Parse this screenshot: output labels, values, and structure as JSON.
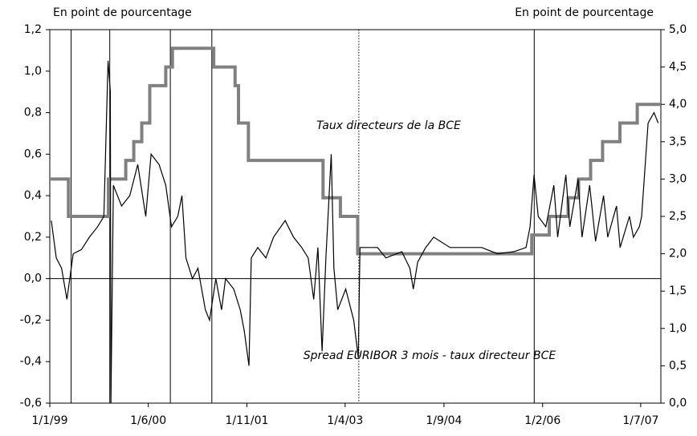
{
  "chart_data": {
    "type": "line",
    "ylabel": "En point de pourcentage",
    "y2label": "En point de pourcentage",
    "xlim": [
      "1999-01-01",
      "2007-10-15"
    ],
    "xticks": [
      {
        "value": "1999-01-01",
        "label": "1/1/99"
      },
      {
        "value": "2000-06-01",
        "label": "1/6/00"
      },
      {
        "value": "2001-11-01",
        "label": "1/11/01"
      },
      {
        "value": "2003-04-01",
        "label": "1/4/03"
      },
      {
        "value": "2004-09-01",
        "label": "1/9/04"
      },
      {
        "value": "2006-02-01",
        "label": "1/2/06"
      },
      {
        "value": "2007-07-01",
        "label": "1/7/07"
      }
    ],
    "ylim": [
      -0.6,
      1.2
    ],
    "yticks": [
      {
        "value": 1.2,
        "label": "1,2"
      },
      {
        "value": 1.0,
        "label": "1,0"
      },
      {
        "value": 0.8,
        "label": "0,8"
      },
      {
        "value": 0.6,
        "label": "0,6"
      },
      {
        "value": 0.4,
        "label": "0,4"
      },
      {
        "value": 0.2,
        "label": "0,2"
      },
      {
        "value": 0,
        "label": "0,0"
      },
      {
        "value": -0.2,
        "label": "-0,2"
      },
      {
        "value": -0.4,
        "label": "-0,4"
      },
      {
        "value": -0.6,
        "label": "-0,6"
      }
    ],
    "y2lim": [
      0,
      5.0
    ],
    "y2ticks": [
      {
        "value": 5.0,
        "label": "5,0"
      },
      {
        "value": 4.5,
        "label": "4,5"
      },
      {
        "value": 4.0,
        "label": "4,0"
      },
      {
        "value": 3.5,
        "label": "3,5"
      },
      {
        "value": 3.0,
        "label": "3,0"
      },
      {
        "value": 2.5,
        "label": "2,5"
      },
      {
        "value": 2.0,
        "label": "2,0"
      },
      {
        "value": 1.5,
        "label": "1,5"
      },
      {
        "value": 1.0,
        "label": "1,0"
      },
      {
        "value": 0.5,
        "label": "0,5"
      },
      {
        "value": 0,
        "label": "0,0"
      }
    ],
    "vlines": [
      {
        "x": "1999-04-23"
      },
      {
        "x": "1999-11-12"
      },
      {
        "x": "2000-09-25"
      },
      {
        "x": "2001-05-01"
      },
      {
        "x": "2003-06-12",
        "style": "dotted"
      },
      {
        "x": "2005-12-19"
      }
    ],
    "series": [
      {
        "name": "Taux directeurs de la BCE",
        "color": "#808080",
        "axis": "y2",
        "step": true,
        "x": [
          "1999-01-01",
          "1999-04-09",
          "1999-11-05",
          "2000-02-04",
          "2000-03-17",
          "2000-04-28",
          "2000-06-09",
          "2000-09-01",
          "2000-10-06",
          "2001-05-11",
          "2001-08-31",
          "2001-09-18",
          "2001-11-09",
          "2002-12-06",
          "2003-03-07",
          "2003-06-06",
          "2005-12-06",
          "2006-03-08",
          "2006-06-15",
          "2006-08-09",
          "2006-10-11",
          "2006-12-13",
          "2007-03-14",
          "2007-06-13"
        ],
        "values": [
          3.0,
          2.5,
          3.0,
          3.25,
          3.5,
          3.75,
          4.25,
          4.5,
          4.75,
          4.5,
          4.25,
          3.75,
          3.25,
          2.75,
          2.5,
          2.0,
          2.25,
          2.5,
          2.75,
          3.0,
          3.25,
          3.5,
          3.75,
          4.0
        ]
      },
      {
        "name": "Spread EURIBOR 3 mois - taux directeur BCE",
        "color": "#000000",
        "axis": "y",
        "x": [
          "1999-01-09",
          "1999-02-04",
          "1999-03-04",
          "1999-04-01",
          "1999-05-04",
          "1999-06-16",
          "1999-07-28",
          "1999-09-09",
          "1999-10-12",
          "1999-11-03",
          "1999-11-15",
          "1999-11-18",
          "1999-12-01",
          "2000-01-13",
          "2000-02-25",
          "2000-04-07",
          "2000-05-19",
          "2000-06-16",
          "2000-07-28",
          "2000-09-01",
          "2000-10-01",
          "2000-11-03",
          "2000-11-25",
          "2000-12-16",
          "2001-01-19",
          "2001-02-17",
          "2001-03-28",
          "2001-04-19",
          "2001-05-22",
          "2001-06-21",
          "2001-07-12",
          "2001-08-24",
          "2001-09-27",
          "2001-10-18",
          "2001-11-12",
          "2001-11-24",
          "2001-12-28",
          "2002-02-09",
          "2002-03-21",
          "2002-05-21",
          "2002-07-04",
          "2002-08-16",
          "2002-09-19",
          "2002-10-18",
          "2002-11-09",
          "2002-12-01",
          "2002-12-21",
          "2003-01-18",
          "2003-02-01",
          "2003-02-21",
          "2003-04-04",
          "2003-05-16",
          "2003-06-09",
          "2003-06-18",
          "2003-09-18",
          "2003-11-01",
          "2004-01-24",
          "2004-03-06",
          "2004-03-24",
          "2004-04-16",
          "2004-05-28",
          "2004-07-09",
          "2004-10-03",
          "2004-12-25",
          "2005-03-18",
          "2005-06-09",
          "2005-09-03",
          "2005-11-06",
          "2005-11-27",
          "2005-12-18",
          "2006-01-09",
          "2006-02-18",
          "2006-04-01",
          "2006-04-21",
          "2006-06-03",
          "2006-06-24",
          "2006-08-06",
          "2006-08-27",
          "2006-10-06",
          "2006-11-06",
          "2006-12-18",
          "2007-01-09",
          "2007-02-24",
          "2007-03-15",
          "2007-05-03",
          "2007-05-24",
          "2007-06-24",
          "2007-07-06",
          "2007-08-09",
          "2007-09-09",
          "2007-10-01"
        ],
        "values": [
          0.28,
          0.1,
          0.05,
          -0.1,
          0.12,
          0.14,
          0.2,
          0.25,
          0.3,
          1.05,
          0.9,
          -0.6,
          0.45,
          0.35,
          0.4,
          0.55,
          0.3,
          0.6,
          0.55,
          0.45,
          0.25,
          0.3,
          0.4,
          0.1,
          0.0,
          0.05,
          -0.15,
          -0.2,
          0.0,
          -0.15,
          0.0,
          -0.05,
          -0.15,
          -0.25,
          -0.42,
          0.1,
          0.15,
          0.1,
          0.2,
          0.28,
          0.2,
          0.15,
          0.1,
          -0.1,
          0.15,
          -0.35,
          0.1,
          0.6,
          0.05,
          -0.15,
          -0.05,
          -0.2,
          -0.38,
          0.15,
          0.15,
          0.1,
          0.13,
          0.05,
          -0.05,
          0.08,
          0.15,
          0.2,
          0.15,
          0.15,
          0.15,
          0.12,
          0.13,
          0.15,
          0.25,
          0.5,
          0.3,
          0.25,
          0.45,
          0.2,
          0.5,
          0.25,
          0.48,
          0.2,
          0.45,
          0.18,
          0.4,
          0.2,
          0.35,
          0.15,
          0.3,
          0.2,
          0.25,
          0.3,
          0.75,
          0.8,
          0.75
        ]
      }
    ]
  }
}
